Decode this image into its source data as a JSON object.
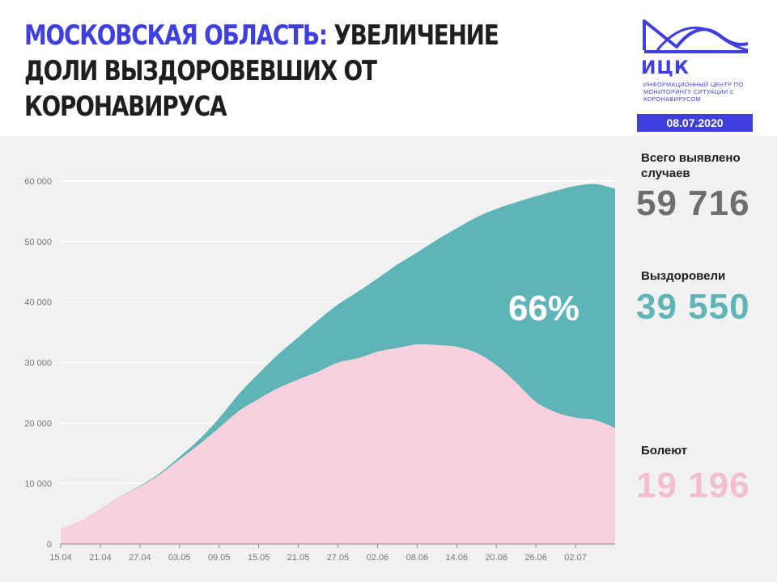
{
  "header": {
    "title_highlight": "МОСКОВСКАЯ ОБЛАСТЬ:",
    "title_rest": " УВЕЛИЧЕНИЕ ДОЛИ ВЫЗДОРОВЕВШИХ ОТ КОРОНАВИРУСА",
    "logo_text": "ИЦК",
    "logo_subtitle": "ИНФОРМАЦИОННЫЙ ЦЕНТР ПО МОНИТОРИНГУ СИТУАЦИИ С КОРОНАВИРУСОМ",
    "date": "08.07.2020"
  },
  "stats": {
    "total_label": "Всего выявлено случаев",
    "total_value": "59 716",
    "recovered_label": "Выздоровели",
    "recovered_value": "39 550",
    "sick_label": "Болеют",
    "sick_value": "19 196"
  },
  "colors": {
    "accent": "#3f3fe0",
    "recovered": "#5eb4b6",
    "sick": "#f9d0dd",
    "total_value": "#6e6e6e",
    "recovered_value": "#5eb4b6",
    "sick_value": "#f2bfcf"
  },
  "chart_data": {
    "type": "area",
    "stacked": true,
    "annotation": "66%",
    "grid": true,
    "ylim": [
      0,
      60000
    ],
    "yticks": [
      0,
      10000,
      20000,
      30000,
      40000,
      50000,
      60000
    ],
    "ytick_labels": [
      "0",
      "10 000",
      "20 000",
      "30 000",
      "40 000",
      "50 000",
      "60 000"
    ],
    "x_tick_labels": [
      "15.04",
      "21.04",
      "27.04",
      "03.05",
      "09.05",
      "15.05",
      "21.05",
      "27.05",
      "02.06",
      "08.06",
      "14.06",
      "20.06",
      "26.06",
      "02.07"
    ],
    "x": [
      "15.04",
      "18.04",
      "21.04",
      "24.04",
      "27.04",
      "30.04",
      "03.05",
      "06.05",
      "09.05",
      "12.05",
      "15.05",
      "18.05",
      "21.05",
      "24.05",
      "27.05",
      "30.05",
      "02.06",
      "05.06",
      "08.06",
      "11.06",
      "14.06",
      "17.06",
      "20.06",
      "23.06",
      "26.06",
      "29.06",
      "02.07",
      "05.07",
      "08.07"
    ],
    "series": [
      {
        "name": "Болеют",
        "values": [
          2500,
          3800,
          5800,
          7800,
          9500,
          11500,
          14000,
          16500,
          19200,
          22000,
          24000,
          25800,
          27200,
          28500,
          30000,
          30700,
          31800,
          32400,
          33000,
          32900,
          32600,
          31600,
          29600,
          26700,
          23500,
          21800,
          20900,
          20500,
          19196
        ]
      },
      {
        "name": "Выздоровели",
        "values": [
          0,
          0,
          0,
          50,
          100,
          200,
          400,
          800,
          1600,
          2800,
          4200,
          5600,
          7000,
          8500,
          9600,
          11000,
          12100,
          13800,
          15200,
          17400,
          19600,
          22400,
          25800,
          29800,
          34000,
          36600,
          38300,
          39000,
          39550
        ]
      }
    ]
  }
}
